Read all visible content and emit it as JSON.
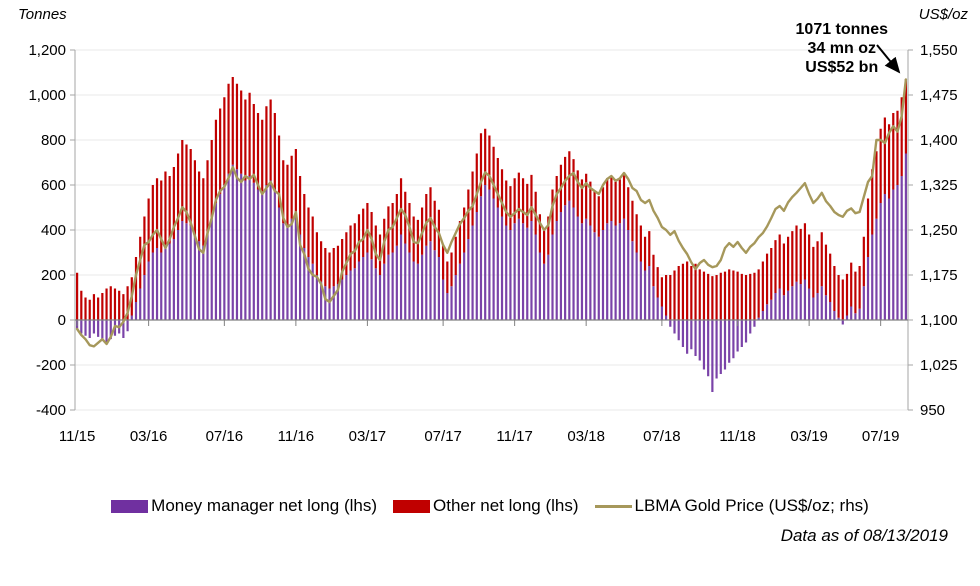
{
  "annotation": {
    "line1": "1071 tonnes",
    "line2": "34 mn oz",
    "line3": "US$52 bn"
  },
  "footer": {
    "text": "Data as of 08/13/2019"
  },
  "legend": [
    {
      "label": "Money manager net long (lhs)",
      "color": "#7030A0",
      "type": "bar"
    },
    {
      "label": "Other net long (lhs)",
      "color": "#C00000",
      "type": "bar"
    },
    {
      "label": "LBMA Gold Price (US$/oz; rhs)",
      "color": "#A6985B",
      "type": "line"
    }
  ],
  "chart_data": {
    "type": "bar",
    "frequency": "weekly",
    "left_axis": {
      "title": "Tonnes",
      "min": -400,
      "max": 1200,
      "step": 200,
      "tick_values": [
        1200,
        1000,
        800,
        600,
        400,
        200,
        0,
        -200,
        -400
      ],
      "tick_labels": [
        "1,200",
        "1,000",
        "800",
        "600",
        "400",
        "200",
        "0",
        "-200",
        "-400"
      ]
    },
    "right_axis": {
      "title": "US$/oz",
      "min": 950,
      "max": 1550,
      "step": 75,
      "tick_values": [
        1550,
        1475,
        1400,
        1325,
        1250,
        1175,
        1100,
        1025,
        950
      ],
      "tick_labels": [
        "1,550",
        "1,475",
        "1,400",
        "1,325",
        "1,250",
        "1,175",
        "1,100",
        "1,025",
        "950"
      ]
    },
    "x_ticks": {
      "labels": [
        "11/15",
        "03/16",
        "07/16",
        "11/16",
        "03/17",
        "07/17",
        "11/17",
        "03/18",
        "07/18",
        "11/18",
        "03/19",
        "07/19"
      ],
      "indices": [
        0,
        17,
        35,
        52,
        69,
        87,
        104,
        121,
        139,
        157,
        174,
        191
      ]
    },
    "series": [
      {
        "name": "Money manager net long (lhs)",
        "type": "bar",
        "axis": "left",
        "color": "#7A43A8",
        "values": [
          -40,
          -60,
          -70,
          -80,
          -60,
          -75,
          -90,
          -100,
          -85,
          -70,
          -60,
          -80,
          -50,
          20,
          80,
          140,
          200,
          260,
          300,
          320,
          300,
          330,
          340,
          360,
          400,
          440,
          430,
          420,
          380,
          350,
          330,
          380,
          450,
          520,
          560,
          600,
          650,
          690,
          670,
          650,
          620,
          640,
          610,
          580,
          560,
          600,
          620,
          580,
          500,
          430,
          420,
          450,
          470,
          380,
          320,
          280,
          250,
          200,
          170,
          150,
          140,
          150,
          160,
          180,
          200,
          220,
          230,
          260,
          280,
          300,
          270,
          230,
          200,
          250,
          290,
          300,
          330,
          380,
          340,
          300,
          260,
          250,
          290,
          330,
          350,
          310,
          280,
          180,
          120,
          150,
          200,
          250,
          300,
          360,
          420,
          480,
          550,
          600,
          580,
          540,
          500,
          460,
          420,
          400,
          430,
          450,
          430,
          410,
          440,
          380,
          300,
          250,
          290,
          380,
          440,
          480,
          510,
          530,
          500,
          460,
          430,
          450,
          420,
          390,
          370,
          400,
          430,
          440,
          420,
          430,
          450,
          400,
          350,
          300,
          260,
          220,
          240,
          150,
          100,
          60,
          20,
          -30,
          -60,
          -90,
          -120,
          -150,
          -130,
          -160,
          -180,
          -220,
          -250,
          -320,
          -260,
          -240,
          -220,
          -190,
          -170,
          -140,
          -120,
          -100,
          -60,
          -30,
          10,
          40,
          70,
          90,
          120,
          140,
          110,
          130,
          150,
          170,
          160,
          180,
          140,
          100,
          120,
          150,
          110,
          80,
          40,
          10,
          -20,
          20,
          60,
          30,
          50,
          150,
          280,
          380,
          450,
          520,
          560,
          540,
          580,
          600,
          640,
          740
        ]
      },
      {
        "name": "Other net long (lhs)",
        "type": "bar",
        "axis": "left",
        "color": "#C00000",
        "stacked_on_positive_base": true,
        "values": [
          210,
          130,
          100,
          90,
          115,
          100,
          120,
          140,
          150,
          140,
          130,
          115,
          150,
          170,
          200,
          230,
          260,
          280,
          300,
          310,
          320,
          330,
          300,
          320,
          340,
          360,
          350,
          340,
          330,
          310,
          300,
          330,
          350,
          370,
          380,
          390,
          400,
          390,
          380,
          370,
          360,
          370,
          350,
          340,
          330,
          350,
          360,
          340,
          320,
          280,
          270,
          280,
          290,
          260,
          240,
          220,
          210,
          190,
          180,
          170,
          160,
          170,
          170,
          180,
          190,
          200,
          200,
          210,
          215,
          220,
          210,
          190,
          180,
          200,
          215,
          220,
          230,
          250,
          230,
          220,
          200,
          195,
          210,
          230,
          240,
          220,
          210,
          150,
          140,
          150,
          170,
          190,
          200,
          220,
          240,
          260,
          280,
          250,
          240,
          230,
          220,
          210,
          200,
          195,
          200,
          205,
          200,
          195,
          205,
          190,
          170,
          150,
          170,
          200,
          200,
          210,
          215,
          220,
          215,
          205,
          195,
          200,
          195,
          185,
          180,
          190,
          200,
          200,
          195,
          195,
          200,
          190,
          180,
          170,
          160,
          150,
          155,
          140,
          135,
          130,
          180,
          200,
          220,
          240,
          250,
          260,
          240,
          250,
          225,
          215,
          205,
          195,
          200,
          210,
          215,
          225,
          220,
          215,
          205,
          200,
          205,
          210,
          215,
          220,
          225,
          230,
          235,
          240,
          230,
          240,
          245,
          250,
          245,
          250,
          240,
          225,
          230,
          240,
          225,
          215,
          200,
          190,
          180,
          185,
          195,
          185,
          190,
          220,
          260,
          290,
          300,
          330,
          340,
          330,
          340,
          330,
          350,
          331
        ]
      },
      {
        "name": "LBMA Gold Price (US$/oz; rhs)",
        "type": "line",
        "axis": "right",
        "color": "#A6985B",
        "values": [
          1085,
          1075,
          1068,
          1058,
          1056,
          1062,
          1068,
          1060,
          1072,
          1090,
          1088,
          1097,
          1112,
          1140,
          1175,
          1200,
          1225,
          1230,
          1242,
          1250,
          1235,
          1220,
          1235,
          1255,
          1270,
          1288,
          1280,
          1262,
          1240,
          1218,
          1212,
          1245,
          1270,
          1300,
          1315,
          1322,
          1337,
          1355,
          1337,
          1330,
          1340,
          1335,
          1342,
          1325,
          1310,
          1320,
          1330,
          1315,
          1310,
          1270,
          1255,
          1260,
          1280,
          1225,
          1210,
          1185,
          1175,
          1172,
          1160,
          1135,
          1130,
          1140,
          1150,
          1180,
          1195,
          1210,
          1215,
          1230,
          1235,
          1250,
          1235,
          1210,
          1200,
          1230,
          1250,
          1255,
          1270,
          1285,
          1275,
          1255,
          1230,
          1228,
          1245,
          1262,
          1270,
          1255,
          1245,
          1225,
          1212,
          1230,
          1245,
          1260,
          1270,
          1282,
          1290,
          1310,
          1330,
          1346,
          1340,
          1325,
          1310,
          1295,
          1280,
          1272,
          1278,
          1285,
          1280,
          1275,
          1288,
          1275,
          1262,
          1250,
          1258,
          1290,
          1310,
          1320,
          1332,
          1340,
          1345,
          1330,
          1320,
          1328,
          1320,
          1315,
          1310,
          1325,
          1335,
          1340,
          1332,
          1336,
          1345,
          1335,
          1320,
          1315,
          1300,
          1295,
          1300,
          1282,
          1270,
          1255,
          1250,
          1242,
          1248,
          1232,
          1220,
          1210,
          1196,
          1185,
          1195,
          1200,
          1192,
          1188,
          1190,
          1200,
          1220,
          1228,
          1222,
          1230,
          1220,
          1212,
          1222,
          1228,
          1238,
          1245,
          1256,
          1270,
          1285,
          1290,
          1282,
          1296,
          1305,
          1312,
          1320,
          1328,
          1310,
          1295,
          1302,
          1312,
          1298,
          1290,
          1280,
          1275,
          1272,
          1282,
          1286,
          1278,
          1280,
          1305,
          1330,
          1340,
          1400,
          1400,
          1395,
          1412,
          1423,
          1414,
          1440,
          1501
        ]
      }
    ],
    "annotation_target": {
      "series": "total net long",
      "value_tonnes": 1071,
      "price_at_end": 1501
    },
    "grid": "horizontal-light",
    "legend_position": "bottom"
  }
}
